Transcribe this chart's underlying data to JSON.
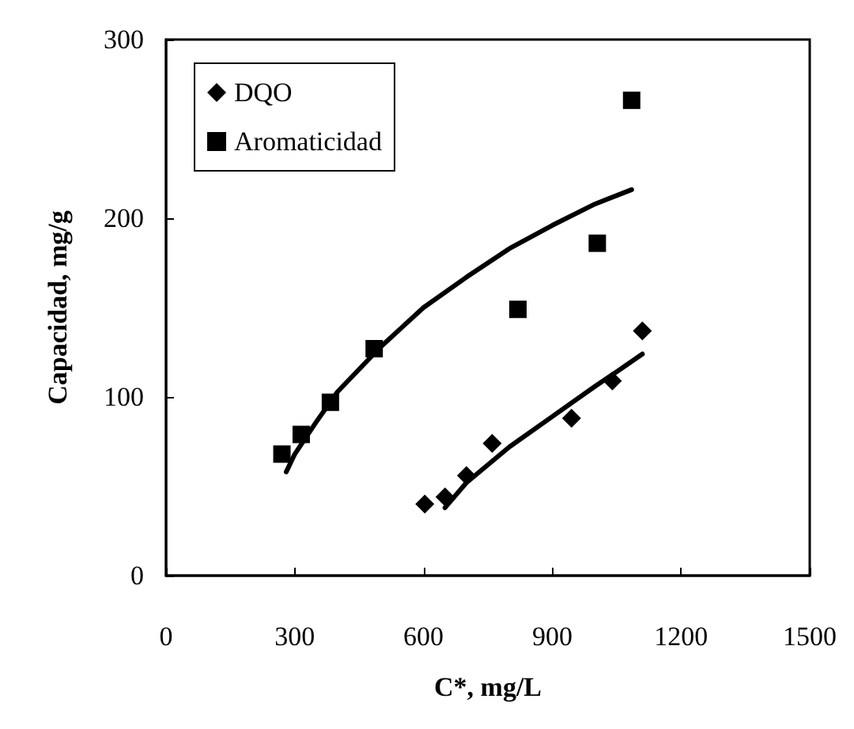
{
  "chart_data": {
    "type": "scatter",
    "xlabel": "C*, mg/L",
    "ylabel": "Capacidad, mg/g",
    "xlim": [
      0,
      1500
    ],
    "xticks": [
      0,
      300,
      600,
      900,
      1200,
      1500
    ],
    "ylim": [
      0,
      300
    ],
    "yticks": [
      0,
      100,
      200,
      300
    ],
    "grid": false,
    "legend": "top left",
    "series": [
      {
        "name": "DQO",
        "color": "#000000",
        "marker": "diamond",
        "x": [
          603,
          650,
          700,
          760,
          945,
          1040,
          1110
        ],
        "values": [
          40,
          44,
          56,
          74,
          88,
          109,
          137
        ]
      },
      {
        "name": "Aromaticidad",
        "color": "#000000",
        "marker": "square",
        "x": [
          270,
          315,
          383,
          485,
          820,
          1005,
          1085
        ],
        "values": [
          68,
          79,
          97,
          127,
          149,
          186,
          266
        ]
      },
      {
        "type": "line",
        "color": "#000000",
        "marker": "none",
        "line_style": "solid",
        "x": [
          280,
          300,
          350,
          400,
          500,
          600,
          700,
          800,
          900,
          1000,
          1085
        ],
        "values": [
          58,
          68,
          86,
          103,
          128,
          150,
          167,
          183,
          196,
          208,
          216
        ]
      },
      {
        "type": "line",
        "color": "#000000",
        "marker": "none",
        "line_style": "solid",
        "x": [
          650,
          700,
          800,
          900,
          1000,
          1050,
          1110
        ],
        "values": [
          38,
          52,
          72,
          89,
          106,
          114,
          124
        ]
      }
    ]
  }
}
